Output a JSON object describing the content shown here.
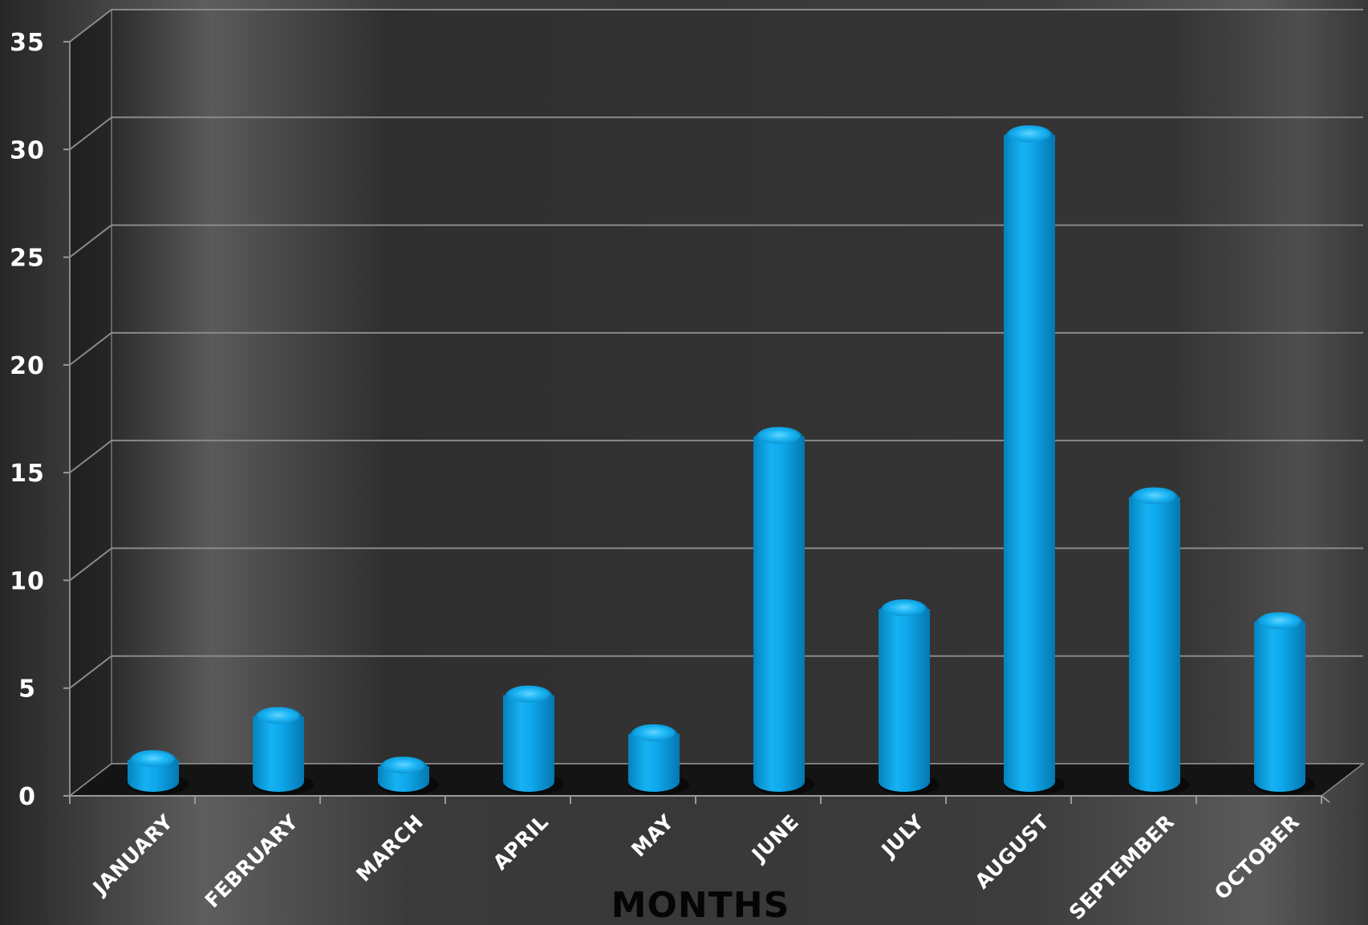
{
  "chart_data": {
    "type": "bar",
    "title": "",
    "xlabel": "MONTHS",
    "ylabel": "",
    "categories": [
      "JANUARY",
      "FEBRUARY",
      "MARCH",
      "APRIL",
      "MAY",
      "JUNE",
      "JULY",
      "AUGUST",
      "SEPTEMBER",
      "OCTOBER"
    ],
    "values": [
      1,
      3,
      0.7,
      4,
      2.2,
      16,
      8,
      30,
      13.2,
      7.4
    ],
    "ylim": [
      0,
      35
    ],
    "yticks": [
      "0",
      "5",
      "10",
      "15",
      "20",
      "25",
      "30",
      "35"
    ],
    "grid": true,
    "bar_color": "#0aa2e6",
    "background_color": "#2b2b2b",
    "gridline_color": "#8a8a8a"
  }
}
